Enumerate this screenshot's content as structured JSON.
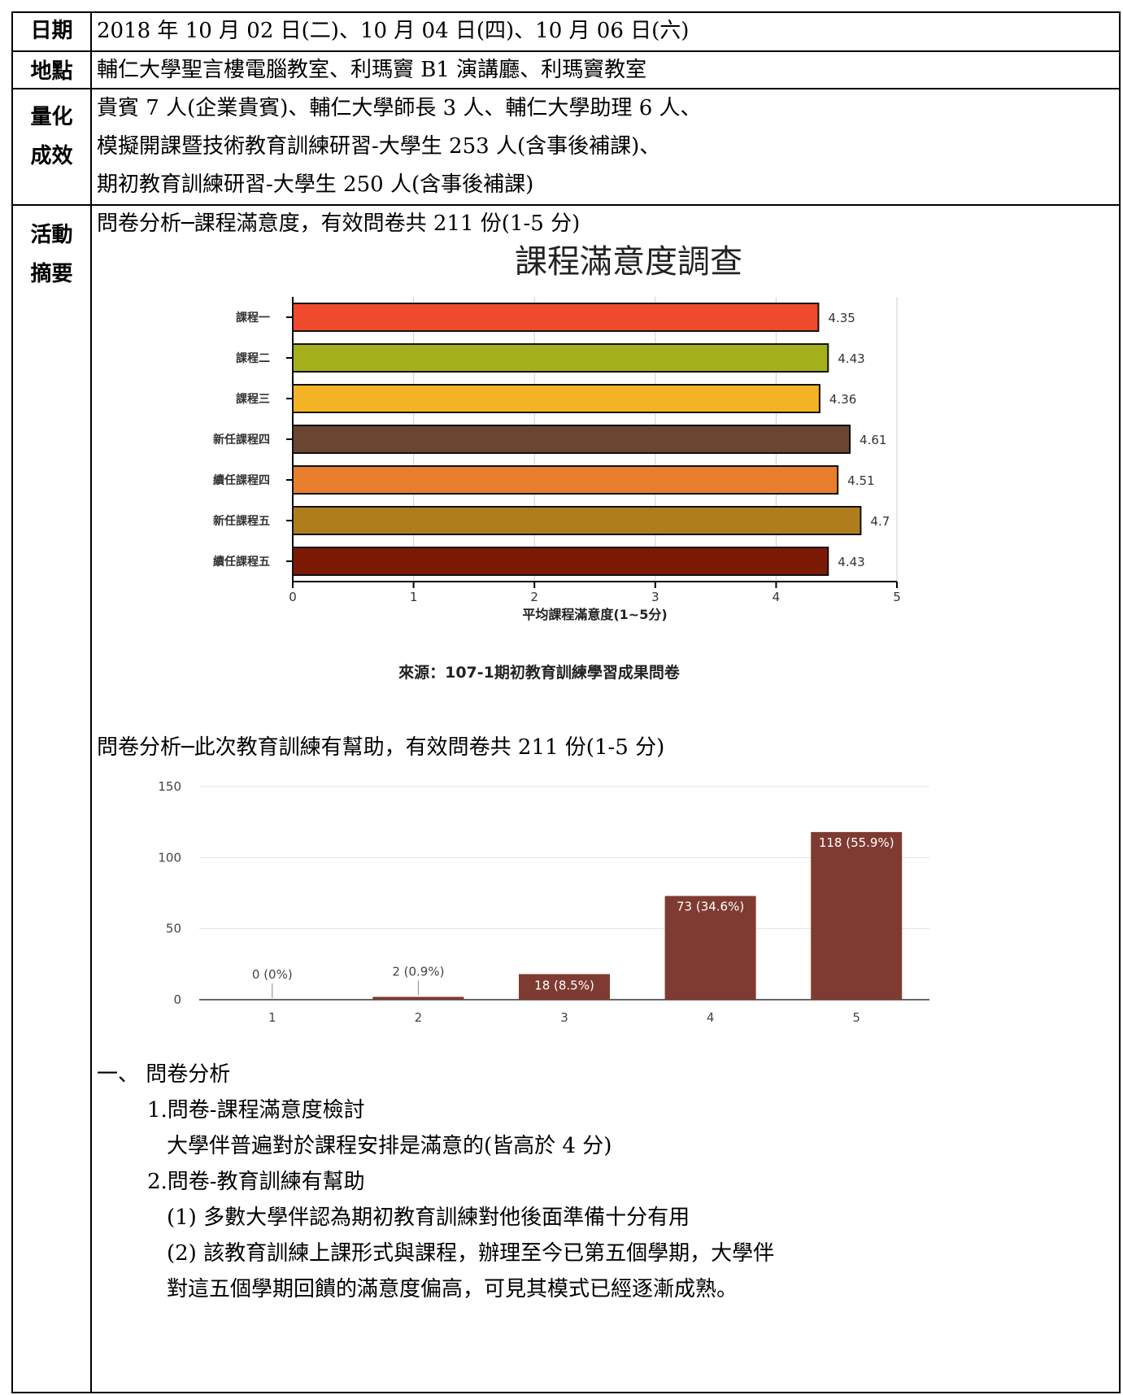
{
  "rows": {
    "date": {
      "label": "日期",
      "value": "2018 年 10 月 02 日(二)、10 月 04 日(四)、10 月 06 日(六)"
    },
    "place": {
      "label": "地點",
      "value": "輔仁大學聖言樓電腦教室、利瑪竇 B1 演講廳、利瑪竇教室"
    },
    "results": {
      "label1": "量化",
      "label2": "成效",
      "lines": [
        "貴賓 7 人(企業貴賓)、輔仁大學師長 3 人、輔仁大學助理 6 人、",
        "模擬開課暨技術教育訓練研習-大學生 253 人(含事後補課)、",
        "期初教育訓練研習-大學生 250 人(含事後補課)"
      ]
    },
    "summary": {
      "label1": "活動",
      "label2": "摘要",
      "heading1": "問卷分析─課程滿意度，有效問卷共 211 份(1-5 分)",
      "heading2": "問卷分析─此次教育訓練有幫助，有效問卷共 211 份(1-5 分)",
      "analysis": [
        "一、 問卷分析",
        "1.問卷-課程滿意度檢討",
        "大學伴普遍對於課程安排是滿意的(皆高於 4 分)",
        "2.問卷-教育訓練有幫助",
        "(1) 多數大學伴認為期初教育訓練對他後面準備十分有用",
        "(2) 該教育訓練上課形式與課程，辦理至今已第五個學期，大學伴",
        "對這五個學期回饋的滿意度偏高，可見其模式已經逐漸成熟。"
      ]
    }
  },
  "chart_data": [
    {
      "type": "bar",
      "orientation": "horizontal",
      "title": "課程滿意度調查",
      "xlabel": "平均課程滿意度(1~5分)",
      "source": "來源：107-1期初教育訓練學習成果問卷",
      "categories": [
        "課程一",
        "課程二",
        "課程三",
        "新任課程四",
        "續任課程四",
        "新任課程五",
        "續任課程五"
      ],
      "values": [
        4.35,
        4.43,
        4.36,
        4.61,
        4.51,
        4.7,
        4.43
      ],
      "value_labels": [
        "4.35",
        "4.43",
        "4.36",
        "4.61",
        "4.51",
        "4.7",
        "4.43"
      ],
      "colors": [
        "#f04a2c",
        "#a3b01c",
        "#f4b324",
        "#6b4532",
        "#e87d2e",
        "#b07d1c",
        "#7d1a06"
      ],
      "xlim": [
        0,
        5
      ],
      "xticks": [
        "0",
        "1",
        "2",
        "3",
        "4",
        "5"
      ],
      "grid": true
    },
    {
      "type": "bar",
      "categories": [
        "1",
        "2",
        "3",
        "4",
        "5"
      ],
      "values": [
        0,
        2,
        18,
        73,
        118
      ],
      "value_labels": [
        "0 (0%)",
        "2 (0.9%)",
        "18 (8.5%)",
        "73 (34.6%)",
        "118 (55.9%)"
      ],
      "color": "#7f3b31",
      "ylim": [
        0,
        150
      ],
      "yticks": [
        "0",
        "50",
        "100",
        "150"
      ],
      "grid": true
    }
  ]
}
